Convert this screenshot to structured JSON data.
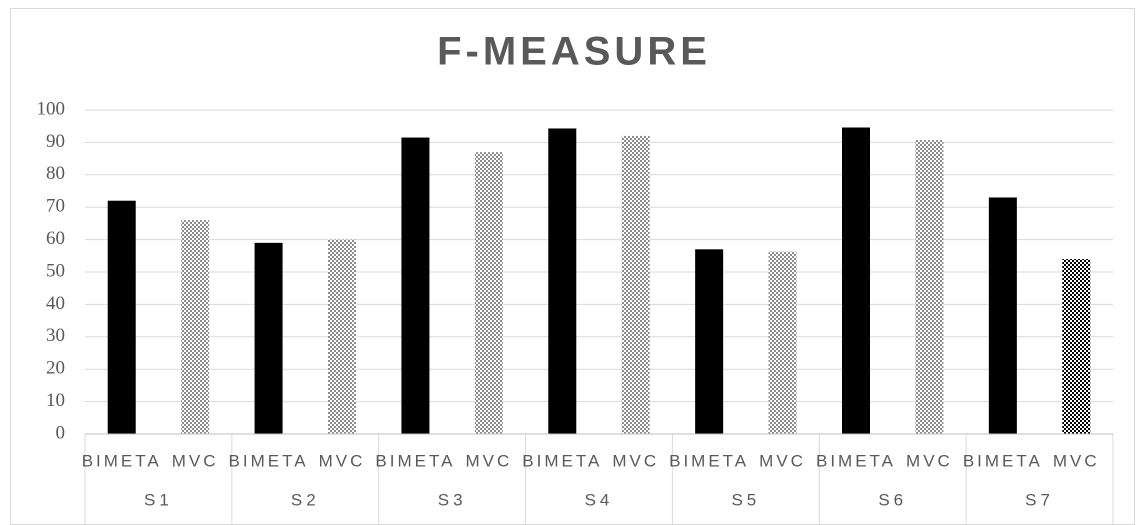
{
  "chart_data": {
    "type": "bar",
    "title": "F-MEASURE",
    "categories": [
      "S1",
      "S2",
      "S3",
      "S4",
      "S5",
      "S6",
      "S7"
    ],
    "subcategories": [
      "BIMETA",
      "MVC"
    ],
    "series": [
      {
        "name": "BIMETA",
        "color": "#000000",
        "pattern": "solid",
        "values": [
          72,
          59,
          91.5,
          94.3,
          57,
          94.6,
          73
        ]
      },
      {
        "name": "MVC",
        "color": "#8c8c8c",
        "pattern": "dots",
        "colors": [
          "#8c8c8c",
          "#8c8c8c",
          "#8c8c8c",
          "#8c8c8c",
          "#8c8c8c",
          "#8c8c8c",
          "#000000"
        ],
        "values": [
          66,
          60,
          87,
          92,
          56.3,
          90.7,
          54
        ]
      }
    ],
    "ylim": [
      0,
      100
    ],
    "yticks": [
      0,
      10,
      20,
      30,
      40,
      50,
      60,
      70,
      80,
      90,
      100
    ],
    "grid": true
  }
}
